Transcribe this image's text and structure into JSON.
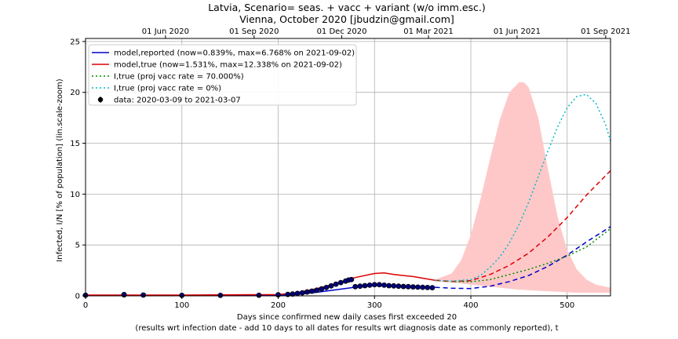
{
  "chart_data": {
    "type": "line",
    "title": "Latvia, Scenario= seas. + vacc + variant (w/o imm.esc.)",
    "subtitle": "Vienna, October 2020 [jbudzin@gmail.com]",
    "xlabel": "Days since confirmed new daily cases first exceeded 20",
    "xlabel2": "(results wrt infection date - add 10 days to all dates for results wrt diagnosis date as commonly reported), t",
    "ylabel": "Infected, I/N [% of population] (lin.scale-zoom)",
    "xlim": [
      0,
      545
    ],
    "ylim": [
      0,
      25.3
    ],
    "xticks": [
      "0",
      "100",
      "200",
      "300",
      "400",
      "500"
    ],
    "yticks": [
      "0",
      "5",
      "10",
      "15",
      "20",
      "25"
    ],
    "top_ticks": [
      "01 Jun 2020",
      "01 Sep 2020",
      "01 Dec 2020",
      "01 Mar 2021",
      "01 Jun 2021",
      "01 Sep 2021"
    ],
    "top_tick_days": [
      83,
      175,
      266,
      356,
      448,
      540
    ],
    "grid": true,
    "legend_position": "top-left",
    "legend": [
      "model,reported (now=0.839%, max=6.768% on 2021-09-02)",
      "model,true (now=1.531%, max=12.338% on 2021-09-02)",
      "I,true (proj vacc rate = 70.000%)",
      "I,true (proj vacc rate = 0%)",
      "data: 2020-03-09 to 2021-03-07"
    ],
    "colors": {
      "reported": "#0000cc",
      "true": "#dd0000",
      "vacc70": "#008800",
      "vacc0": "#00bbcc",
      "band": "#ffc8c8",
      "data": "#000080"
    },
    "series": [
      {
        "name": "model,reported (now=0.839%, max=6.768% on 2021-09-02)",
        "x": [
          0,
          100,
          200,
          220,
          240,
          260,
          280,
          300,
          320,
          340,
          363,
          380,
          400,
          420,
          440,
          460,
          480,
          500,
          520,
          545
        ],
        "y": [
          0.05,
          0.05,
          0.08,
          0.15,
          0.35,
          0.6,
          0.85,
          1.0,
          0.95,
          0.88,
          0.84,
          0.75,
          0.72,
          0.95,
          1.4,
          2.0,
          2.9,
          4.0,
          5.3,
          6.8
        ]
      },
      {
        "name": "model,true (now=1.531%, max=12.338% on 2021-09-02)",
        "x": [
          0,
          100,
          200,
          220,
          240,
          260,
          280,
          300,
          310,
          320,
          340,
          363,
          380,
          400,
          420,
          440,
          460,
          480,
          500,
          520,
          545
        ],
        "y": [
          0.08,
          0.08,
          0.12,
          0.3,
          0.7,
          1.2,
          1.8,
          2.2,
          2.25,
          2.1,
          1.9,
          1.53,
          1.4,
          1.5,
          2.1,
          3.0,
          4.2,
          5.8,
          7.7,
          9.9,
          12.3
        ]
      },
      {
        "name": "I,true (proj vacc rate = 70.000%)",
        "x": [
          363,
          380,
          400,
          420,
          440,
          460,
          480,
          500,
          520,
          545
        ],
        "y": [
          1.53,
          1.4,
          1.38,
          1.6,
          2.1,
          2.6,
          3.2,
          3.9,
          4.8,
          6.6
        ]
      },
      {
        "name": "I,true (proj vacc rate = 0%)",
        "x": [
          363,
          380,
          400,
          410,
          420,
          430,
          440,
          450,
          460,
          470,
          480,
          490,
          500,
          510,
          520,
          530,
          540,
          545
        ],
        "y": [
          1.53,
          1.45,
          1.6,
          2.0,
          2.8,
          3.8,
          5.2,
          7.0,
          9.2,
          11.7,
          14.2,
          16.6,
          18.5,
          19.6,
          19.8,
          18.9,
          16.8,
          15.2
        ]
      }
    ],
    "band": {
      "name": "uncertainty band",
      "x": [
        363,
        380,
        390,
        400,
        410,
        420,
        430,
        440,
        450,
        455,
        460,
        470,
        480,
        490,
        500,
        510,
        520,
        530,
        545
      ],
      "upper": [
        1.6,
        2.2,
        3.5,
        6.0,
        9.5,
        13.5,
        17.3,
        20.0,
        21.0,
        21.0,
        20.5,
        17.5,
        12.5,
        7.8,
        4.5,
        2.6,
        1.6,
        1.1,
        0.8
      ],
      "lower": [
        1.4,
        1.3,
        1.2,
        1.1,
        1.0,
        0.9,
        0.8,
        0.7,
        0.6,
        0.6,
        0.55,
        0.5,
        0.45,
        0.4,
        0.35,
        0.3,
        0.3,
        0.3,
        0.3
      ]
    },
    "data_points": {
      "name": "data: 2020-03-09 to 2021-03-07",
      "x": [
        0,
        40,
        40,
        60,
        100,
        140,
        180,
        200,
        210,
        215,
        220,
        225,
        230,
        235,
        240,
        245,
        250,
        255,
        260,
        265,
        270,
        273,
        276,
        280,
        285,
        290,
        295,
        300,
        305,
        310,
        315,
        320,
        325,
        330,
        335,
        340,
        345,
        350,
        355,
        360
      ],
      "y": [
        0.06,
        0.1,
        0.12,
        0.08,
        0.05,
        0.05,
        0.06,
        0.1,
        0.14,
        0.18,
        0.24,
        0.3,
        0.38,
        0.46,
        0.56,
        0.68,
        0.82,
        0.98,
        1.15,
        1.3,
        1.45,
        1.55,
        1.6,
        0.9,
        0.95,
        1.0,
        1.05,
        1.1,
        1.1,
        1.05,
        1.0,
        0.98,
        0.95,
        0.92,
        0.9,
        0.88,
        0.86,
        0.84,
        0.82,
        0.8
      ]
    }
  }
}
